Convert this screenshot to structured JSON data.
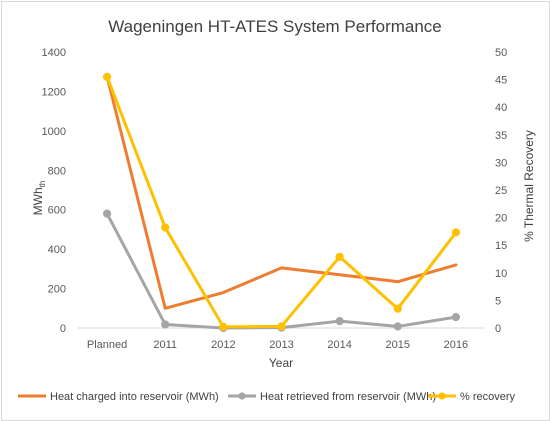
{
  "chart_data": {
    "type": "line",
    "title": "Wageningen HT-ATES System Performance",
    "xlabel": "Year",
    "ylabel_main": "MWh",
    "ylabel_sub": "th",
    "y2label": "% Thermal Recovery",
    "categories": [
      "Planned",
      "2011",
      "2012",
      "2013",
      "2014",
      "2015",
      "2016"
    ],
    "ylim": [
      0,
      1400
    ],
    "yticks": [
      "0",
      "200",
      "400",
      "600",
      "800",
      "1000",
      "1200",
      "1400"
    ],
    "y2lim": [
      0,
      50
    ],
    "y2ticks": [
      "0",
      "5",
      "10",
      "15",
      "20",
      "25",
      "30",
      "35",
      "40",
      "45",
      "50"
    ],
    "grid": false,
    "legend_position": "bottom",
    "series": [
      {
        "name": "Heat charged into reservoir (MWh)",
        "axis": "left",
        "color": "#ED7D31",
        "markers": false,
        "values": [
          1275,
          100,
          180,
          305,
          270,
          235,
          320
        ]
      },
      {
        "name": "Heat retrieved from reservoir (MWh)",
        "axis": "left",
        "color": "#A5A5A5",
        "markers": true,
        "values": [
          580,
          18,
          0,
          2,
          35,
          8,
          55
        ]
      },
      {
        "name": "% recovery",
        "axis": "right",
        "color": "#FFC000",
        "markers": true,
        "values": [
          45.5,
          18.2,
          0.2,
          0.3,
          12.9,
          3.5,
          17.3
        ]
      }
    ]
  }
}
